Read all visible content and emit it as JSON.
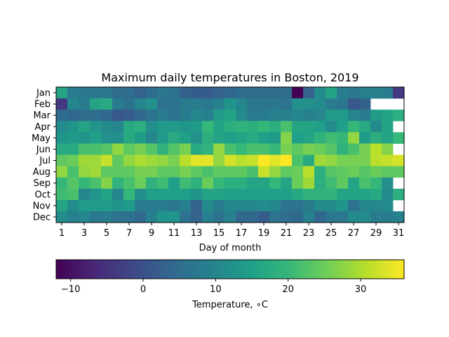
{
  "chart_data": {
    "type": "heatmap",
    "title": "Maximum daily temperatures in Boston, 2019",
    "xlabel": "Day of month",
    "ylabel": "",
    "rows": [
      "Jan",
      "Feb",
      "Mar",
      "Apr",
      "May",
      "Jun",
      "Jul",
      "Aug",
      "Sep",
      "Oct",
      "Nov",
      "Dec"
    ],
    "x_ticks": [
      1,
      3,
      5,
      7,
      9,
      11,
      13,
      15,
      17,
      19,
      21,
      23,
      25,
      27,
      29,
      31
    ],
    "days": 31,
    "colormap": "viridis",
    "vmin": -12,
    "vmax": 36,
    "colorbar": {
      "label": "Temperature, ∘C",
      "ticks": [
        -10,
        0,
        10,
        20,
        30
      ],
      "tick_labels": [
        "−10",
        "0",
        "10",
        "20",
        "30"
      ]
    },
    "missing": "null = no such date (drawn blank)",
    "values": [
      [
        16,
        8,
        7,
        7,
        7,
        5,
        5,
        3,
        5,
        7,
        6,
        3,
        2,
        2,
        3,
        4,
        5,
        5,
        5,
        5,
        5,
        -12,
        3,
        11,
        16,
        8,
        7,
        9,
        9,
        8,
        -4
      ],
      [
        -4,
        10,
        8,
        16,
        17,
        8,
        6,
        10,
        12,
        6,
        6,
        8,
        8,
        7,
        9,
        13,
        10,
        7,
        7,
        7,
        6,
        12,
        12,
        11,
        8,
        7,
        1,
        3,
        null,
        null,
        null
      ],
      [
        5,
        4,
        5,
        5,
        4,
        1,
        2,
        4,
        6,
        8,
        6,
        8,
        10,
        9,
        14,
        16,
        11,
        8,
        8,
        9,
        9,
        10,
        9,
        10,
        14,
        14,
        10,
        8,
        14,
        16,
        18
      ],
      [
        11,
        13,
        16,
        13,
        11,
        10,
        17,
        18,
        12,
        14,
        14,
        13,
        14,
        20,
        16,
        18,
        19,
        18,
        20,
        18,
        22,
        16,
        16,
        15,
        11,
        15,
        20,
        17,
        11,
        16,
        null
      ],
      [
        13,
        14,
        13,
        15,
        12,
        12,
        17,
        14,
        10,
        14,
        17,
        15,
        12,
        18,
        16,
        15,
        16,
        17,
        15,
        14,
        27,
        15,
        16,
        19,
        21,
        20,
        28,
        14,
        18,
        16,
        20
      ],
      [
        17,
        17,
        22,
        22,
        23,
        28,
        24,
        26,
        23,
        19,
        23,
        26,
        17,
        19,
        28,
        22,
        20,
        22,
        22,
        20,
        26,
        24,
        26,
        25,
        23,
        19,
        22,
        26,
        31,
        27,
        null
      ],
      [
        24,
        25,
        29,
        29,
        32,
        24,
        28,
        30,
        29,
        28,
        26,
        31,
        34,
        34,
        28,
        33,
        31,
        32,
        36,
        34,
        36,
        22,
        17,
        29,
        28,
        26,
        26,
        26,
        31,
        32,
        33
      ],
      [
        28,
        22,
        28,
        29,
        24,
        24,
        24,
        26,
        26,
        24,
        24,
        26,
        24,
        22,
        24,
        24,
        24,
        22,
        32,
        28,
        24,
        25,
        31,
        18,
        23,
        24,
        25,
        23,
        25,
        24,
        24
      ],
      [
        20,
        23,
        20,
        22,
        27,
        19,
        22,
        25,
        19,
        21,
        15,
        21,
        19,
        25,
        20,
        18,
        18,
        16,
        16,
        20,
        16,
        25,
        29,
        18,
        21,
        24,
        16,
        22,
        20,
        12,
        null
      ],
      [
        21,
        22,
        10,
        13,
        16,
        10,
        20,
        12,
        15,
        15,
        15,
        15,
        13,
        16,
        16,
        15,
        15,
        15,
        15,
        15,
        15,
        17,
        19,
        19,
        19,
        16,
        16,
        16,
        17,
        11,
        18
      ],
      [
        16,
        11,
        14,
        14,
        14,
        13,
        14,
        8,
        8,
        8,
        7,
        9,
        3,
        11,
        8,
        10,
        10,
        10,
        11,
        10,
        6,
        6,
        8,
        11,
        11,
        13,
        6,
        10,
        10,
        11,
        null
      ],
      [
        11,
        9,
        10,
        7,
        8,
        6,
        6,
        4,
        9,
        13,
        13,
        6,
        3,
        9,
        6,
        9,
        4,
        4,
        2,
        6,
        5,
        4,
        9,
        4,
        7,
        7,
        11,
        11,
        8,
        8,
        9
      ]
    ]
  }
}
